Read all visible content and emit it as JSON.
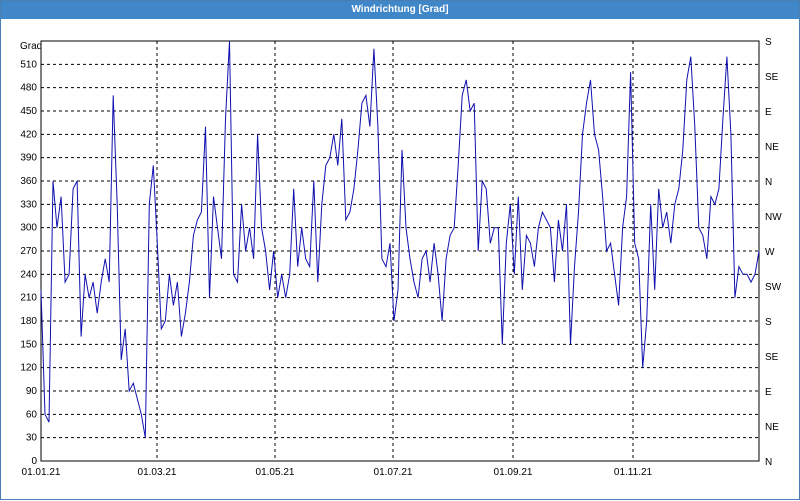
{
  "window": {
    "title": "Windrichtung [Grad]"
  },
  "chart_data": {
    "type": "line",
    "title": "Windrichtung [Grad]",
    "ylabel": "Grad",
    "ylim": [
      0,
      540
    ],
    "xlim": [
      "01.01.21",
      "31.12.21"
    ],
    "yticks": [
      0,
      30,
      60,
      90,
      120,
      150,
      180,
      210,
      240,
      270,
      300,
      330,
      360,
      390,
      420,
      450,
      480,
      510
    ],
    "xticks": [
      "01.01.21",
      "01.03.21",
      "01.05.21",
      "01.07.21",
      "01.09.21",
      "01.11.21"
    ],
    "right_axis_labels": [
      "N",
      "NE",
      "E",
      "SE",
      "S",
      "SW",
      "W",
      "NW",
      "N",
      "NE",
      "E",
      "SE",
      "S"
    ],
    "grid": true,
    "line_color": "#1010b0",
    "series": [
      {
        "values": [
          [
            0,
            220
          ],
          [
            1,
            60
          ],
          [
            2,
            50
          ],
          [
            3,
            360
          ],
          [
            4,
            300
          ],
          [
            5,
            340
          ],
          [
            6,
            230
          ],
          [
            7,
            240
          ],
          [
            8,
            350
          ],
          [
            9,
            360
          ],
          [
            10,
            160
          ],
          [
            11,
            240
          ],
          [
            12,
            210
          ],
          [
            13,
            230
          ],
          [
            14,
            190
          ],
          [
            15,
            230
          ],
          [
            16,
            260
          ],
          [
            17,
            230
          ],
          [
            18,
            470
          ],
          [
            19,
            330
          ],
          [
            20,
            130
          ],
          [
            21,
            170
          ],
          [
            22,
            90
          ],
          [
            23,
            100
          ],
          [
            24,
            80
          ],
          [
            25,
            60
          ],
          [
            26,
            30
          ],
          [
            27,
            330
          ],
          [
            28,
            380
          ],
          [
            29,
            280
          ],
          [
            30,
            170
          ],
          [
            31,
            180
          ],
          [
            32,
            240
          ],
          [
            33,
            200
          ],
          [
            34,
            230
          ],
          [
            35,
            160
          ],
          [
            36,
            190
          ],
          [
            37,
            230
          ],
          [
            38,
            290
          ],
          [
            39,
            310
          ],
          [
            40,
            320
          ],
          [
            41,
            430
          ],
          [
            42,
            210
          ],
          [
            43,
            340
          ],
          [
            44,
            300
          ],
          [
            45,
            260
          ],
          [
            46,
            440
          ],
          [
            47,
            545
          ],
          [
            48,
            240
          ],
          [
            49,
            230
          ],
          [
            50,
            330
          ],
          [
            51,
            270
          ],
          [
            52,
            300
          ],
          [
            53,
            260
          ],
          [
            54,
            420
          ],
          [
            55,
            300
          ],
          [
            56,
            270
          ],
          [
            57,
            220
          ],
          [
            58,
            270
          ],
          [
            59,
            210
          ],
          [
            60,
            240
          ],
          [
            61,
            210
          ],
          [
            62,
            240
          ],
          [
            63,
            350
          ],
          [
            64,
            250
          ],
          [
            65,
            300
          ],
          [
            66,
            260
          ],
          [
            67,
            250
          ],
          [
            68,
            360
          ],
          [
            69,
            230
          ],
          [
            70,
            330
          ],
          [
            71,
            380
          ],
          [
            72,
            390
          ],
          [
            73,
            420
          ],
          [
            74,
            380
          ],
          [
            75,
            440
          ],
          [
            76,
            310
          ],
          [
            77,
            320
          ],
          [
            78,
            350
          ],
          [
            79,
            400
          ],
          [
            80,
            460
          ],
          [
            81,
            470
          ],
          [
            82,
            430
          ],
          [
            83,
            530
          ],
          [
            84,
            430
          ],
          [
            85,
            260
          ],
          [
            86,
            250
          ],
          [
            87,
            280
          ],
          [
            88,
            180
          ],
          [
            89,
            220
          ],
          [
            90,
            400
          ],
          [
            91,
            300
          ],
          [
            92,
            260
          ],
          [
            93,
            230
          ],
          [
            94,
            210
          ],
          [
            95,
            260
          ],
          [
            96,
            270
          ],
          [
            97,
            230
          ],
          [
            98,
            280
          ],
          [
            99,
            240
          ],
          [
            100,
            180
          ],
          [
            101,
            260
          ],
          [
            102,
            290
          ],
          [
            103,
            300
          ],
          [
            104,
            380
          ],
          [
            105,
            470
          ],
          [
            106,
            490
          ],
          [
            107,
            450
          ],
          [
            108,
            460
          ],
          [
            109,
            270
          ],
          [
            110,
            360
          ],
          [
            111,
            350
          ],
          [
            112,
            280
          ],
          [
            113,
            300
          ],
          [
            114,
            300
          ],
          [
            115,
            150
          ],
          [
            116,
            280
          ],
          [
            117,
            330
          ],
          [
            118,
            240
          ],
          [
            119,
            340
          ],
          [
            120,
            220
          ],
          [
            121,
            290
          ],
          [
            122,
            280
          ],
          [
            123,
            250
          ],
          [
            124,
            300
          ],
          [
            125,
            320
          ],
          [
            126,
            310
          ],
          [
            127,
            300
          ],
          [
            128,
            230
          ],
          [
            129,
            310
          ],
          [
            130,
            270
          ],
          [
            131,
            330
          ],
          [
            132,
            150
          ],
          [
            133,
            250
          ],
          [
            134,
            320
          ],
          [
            135,
            420
          ],
          [
            136,
            460
          ],
          [
            137,
            490
          ],
          [
            138,
            420
          ],
          [
            139,
            400
          ],
          [
            140,
            340
          ],
          [
            141,
            270
          ],
          [
            142,
            280
          ],
          [
            143,
            240
          ],
          [
            144,
            200
          ],
          [
            145,
            300
          ],
          [
            146,
            340
          ],
          [
            147,
            500
          ],
          [
            148,
            280
          ],
          [
            149,
            260
          ],
          [
            150,
            120
          ],
          [
            151,
            180
          ],
          [
            152,
            330
          ],
          [
            153,
            220
          ],
          [
            154,
            350
          ],
          [
            155,
            300
          ],
          [
            156,
            320
          ],
          [
            157,
            280
          ],
          [
            158,
            330
          ],
          [
            159,
            350
          ],
          [
            160,
            400
          ],
          [
            161,
            490
          ],
          [
            162,
            520
          ],
          [
            163,
            430
          ],
          [
            164,
            300
          ],
          [
            165,
            290
          ],
          [
            166,
            260
          ],
          [
            167,
            340
          ],
          [
            168,
            330
          ],
          [
            169,
            350
          ],
          [
            170,
            440
          ],
          [
            171,
            520
          ],
          [
            172,
            420
          ],
          [
            173,
            210
          ],
          [
            174,
            250
          ],
          [
            175,
            240
          ],
          [
            176,
            240
          ],
          [
            177,
            230
          ],
          [
            178,
            240
          ],
          [
            179,
            270
          ]
        ]
      }
    ]
  }
}
